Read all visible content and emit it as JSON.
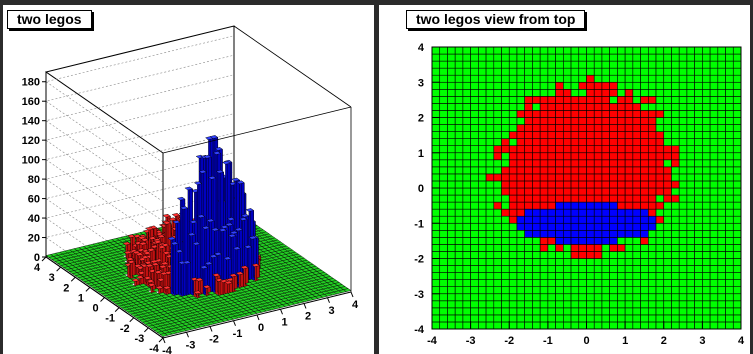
{
  "pads": [
    {
      "title": "two legos"
    },
    {
      "title": "two legos view from top"
    }
  ],
  "chart_data": [
    {
      "type": "lego",
      "title": "two legos",
      "x_ticks": [
        -4,
        -3,
        -2,
        -1,
        0,
        1,
        2,
        3,
        4
      ],
      "y_ticks": [
        -4,
        -3,
        -2,
        -1,
        0,
        1,
        2,
        3,
        4
      ],
      "z_ticks": [
        0,
        20,
        40,
        60,
        80,
        100,
        120,
        140,
        160,
        180
      ],
      "xlim": [
        -4,
        4
      ],
      "ylim": [
        -4,
        4
      ],
      "zlim": [
        0,
        190
      ],
      "series": [
        {
          "color": "#ff0000",
          "values_description_peak": 40
        },
        {
          "color": "#0000ff",
          "values_description_peak": 120
        }
      ],
      "grid": true
    },
    {
      "type": "heatmap",
      "title": "two legos view from top",
      "x_ticks": [
        -4,
        -3,
        -2,
        -1,
        0,
        1,
        2,
        3,
        4
      ],
      "y_ticks": [
        -4,
        -3,
        -2,
        -1,
        0,
        1,
        2,
        3,
        4
      ],
      "xlim": [
        -4,
        4
      ],
      "ylim": [
        -4,
        4
      ],
      "colors": {
        "background": "#00ff00",
        "red": "#ff0000",
        "blue": "#0000ff"
      },
      "grid": true
    }
  ]
}
